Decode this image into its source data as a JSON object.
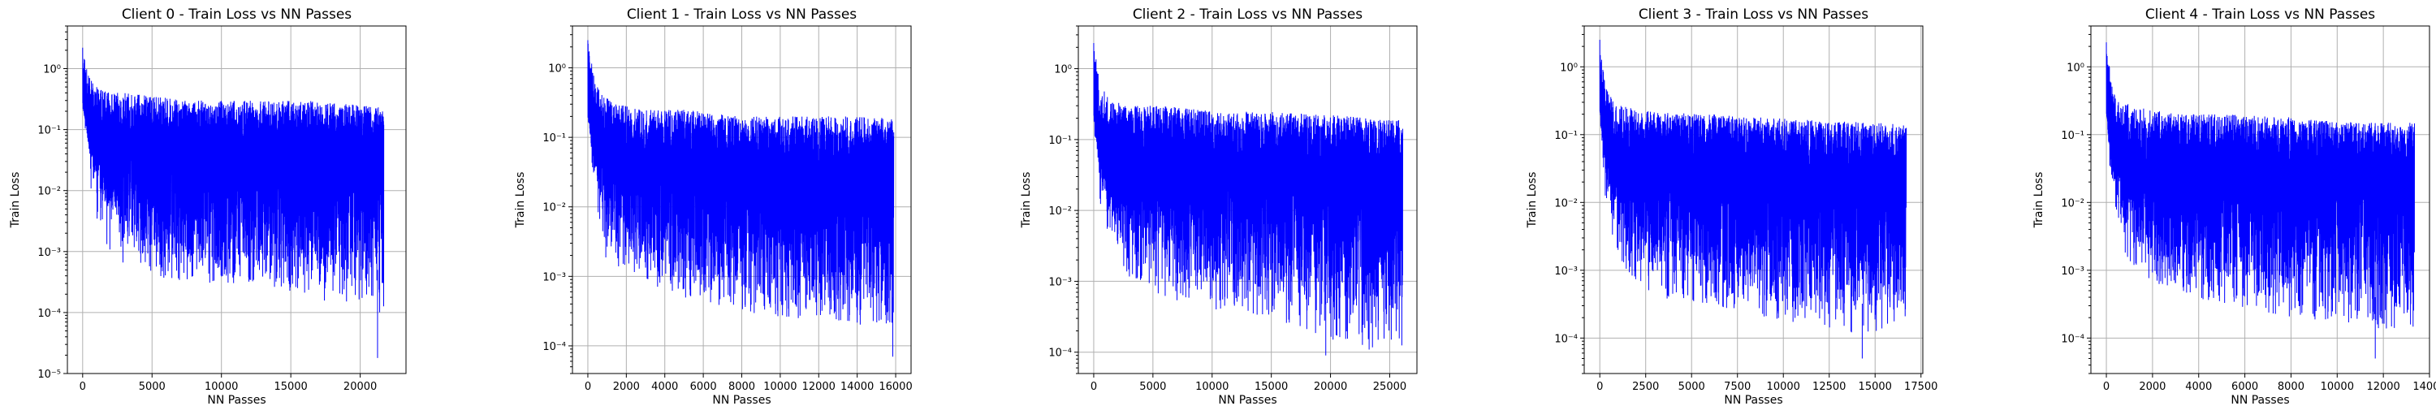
{
  "chart_data": [
    {
      "type": "line",
      "title": "Client 0 - Train Loss vs NN Passes",
      "xlabel": "NN Passes",
      "ylabel": "Train Loss",
      "yscale": "log",
      "xlim": [
        -1100,
        23300
      ],
      "ylim": [
        1e-05,
        5
      ],
      "grid": true,
      "color": "#0000ff",
      "x_ticks": [
        0,
        5000,
        10000,
        15000,
        20000
      ],
      "x_tick_labels": [
        "0",
        "5000",
        "10000",
        "15000",
        "20000"
      ],
      "y_ticks": [
        1e-05,
        0.0001,
        0.001,
        0.01,
        0.1,
        1
      ],
      "y_tick_labels": [
        "10⁻⁵",
        "10⁻⁴",
        "10⁻³",
        "10⁻²",
        "10⁻¹",
        "10⁰"
      ],
      "x_max": 21700,
      "envelope": {
        "x": [
          0,
          500,
          1000,
          2000,
          3000,
          5000,
          8000,
          12000,
          16000,
          20000,
          21700
        ],
        "upper": [
          2.2,
          0.7,
          0.5,
          0.4,
          0.4,
          0.35,
          0.3,
          0.3,
          0.3,
          0.25,
          0.25
        ],
        "lower": [
          0.3,
          0.04,
          0.01,
          0.005,
          0.002,
          0.001,
          0.0008,
          0.0006,
          0.0005,
          0.0005,
          0.0005
        ],
        "min": [
          0.3,
          0.01,
          0.003,
          0.001,
          0.0005,
          0.0004,
          0.0003,
          0.0003,
          0.0002,
          0.0001,
          0.0001
        ]
      },
      "min_point": {
        "x": 21250,
        "y": 1.8e-05
      }
    },
    {
      "type": "line",
      "title": "Client 1 - Train Loss vs NN Passes",
      "xlabel": "NN Passes",
      "ylabel": "Train Loss",
      "yscale": "log",
      "xlim": [
        -800,
        16800
      ],
      "ylim": [
        4e-05,
        4
      ],
      "grid": true,
      "color": "#0000ff",
      "x_ticks": [
        0,
        2000,
        4000,
        6000,
        8000,
        10000,
        12000,
        14000,
        16000
      ],
      "x_tick_labels": [
        "0",
        "2000",
        "4000",
        "6000",
        "8000",
        "10000",
        "12000",
        "14000",
        "16000"
      ],
      "y_ticks": [
        0.0001,
        0.001,
        0.01,
        0.1,
        1
      ],
      "y_tick_labels": [
        "10⁻⁴",
        "10⁻³",
        "10⁻²",
        "10⁻¹",
        "10⁰"
      ],
      "x_max": 15900,
      "envelope": {
        "x": [
          0,
          300,
          800,
          1500,
          3000,
          5000,
          8000,
          11000,
          14000,
          15900
        ],
        "upper": [
          2.5,
          0.8,
          0.4,
          0.3,
          0.25,
          0.25,
          0.2,
          0.2,
          0.2,
          0.2
        ],
        "lower": [
          0.2,
          0.03,
          0.008,
          0.003,
          0.002,
          0.001,
          0.0008,
          0.0006,
          0.0005,
          0.0005
        ],
        "min": [
          0.2,
          0.01,
          0.002,
          0.001,
          0.0008,
          0.0005,
          0.0003,
          0.00025,
          0.0002,
          0.0002
        ]
      },
      "min_point": {
        "x": 15850,
        "y": 7e-05
      }
    },
    {
      "type": "line",
      "title": "Client 2 - Train Loss vs NN Passes",
      "xlabel": "NN Passes",
      "ylabel": "Train Loss",
      "yscale": "log",
      "xlim": [
        -1300,
        27300
      ],
      "ylim": [
        5e-05,
        4
      ],
      "grid": true,
      "color": "#0000ff",
      "x_ticks": [
        0,
        5000,
        10000,
        15000,
        20000,
        25000
      ],
      "x_tick_labels": [
        "0",
        "5000",
        "10000",
        "15000",
        "20000",
        "25000"
      ],
      "y_ticks": [
        0.0001,
        0.001,
        0.01,
        0.1,
        1
      ],
      "y_tick_labels": [
        "10⁻⁴",
        "10⁻³",
        "10⁻²",
        "10⁻¹",
        "10⁰"
      ],
      "x_max": 26100,
      "envelope": {
        "x": [
          0,
          500,
          1500,
          3000,
          6000,
          10000,
          15000,
          20000,
          24000,
          26100
        ],
        "upper": [
          2.3,
          0.6,
          0.35,
          0.3,
          0.3,
          0.25,
          0.25,
          0.22,
          0.2,
          0.2
        ],
        "lower": [
          0.2,
          0.03,
          0.008,
          0.003,
          0.002,
          0.001,
          0.0007,
          0.0005,
          0.0004,
          0.0004
        ],
        "min": [
          0.2,
          0.01,
          0.003,
          0.001,
          0.0006,
          0.0004,
          0.0003,
          0.00015,
          0.0001,
          0.0001
        ]
      },
      "min_point": {
        "x": 19600,
        "y": 9e-05
      }
    },
    {
      "type": "line",
      "title": "Client 3 - Train Loss vs NN Passes",
      "xlabel": "NN Passes",
      "ylabel": "Train Loss",
      "yscale": "log",
      "xlim": [
        -850,
        17600
      ],
      "ylim": [
        3e-05,
        4
      ],
      "grid": true,
      "color": "#0000ff",
      "x_ticks": [
        0,
        2500,
        5000,
        7500,
        10000,
        12500,
        15000,
        17500
      ],
      "x_tick_labels": [
        "0",
        "2500",
        "5000",
        "7500",
        "10000",
        "12500",
        "15000",
        "17500"
      ],
      "y_ticks": [
        0.0001,
        0.001,
        0.01,
        0.1,
        1
      ],
      "y_tick_labels": [
        "10⁻⁴",
        "10⁻³",
        "10⁻²",
        "10⁻¹",
        "10⁰"
      ],
      "x_max": 16700,
      "envelope": {
        "x": [
          0,
          300,
          800,
          1500,
          3000,
          6000,
          9000,
          12000,
          15000,
          16700
        ],
        "upper": [
          2.5,
          0.5,
          0.3,
          0.25,
          0.22,
          0.2,
          0.18,
          0.16,
          0.15,
          0.15
        ],
        "lower": [
          0.2,
          0.02,
          0.006,
          0.002,
          0.001,
          0.0007,
          0.0005,
          0.0004,
          0.0003,
          0.0003
        ],
        "min": [
          0.2,
          0.008,
          0.002,
          0.0008,
          0.0004,
          0.0003,
          0.0002,
          0.00015,
          0.0001,
          0.0001
        ]
      },
      "min_point": {
        "x": 14300,
        "y": 5e-05
      }
    },
    {
      "type": "line",
      "title": "Client 4 - Train Loss vs NN Passes",
      "xlabel": "NN Passes",
      "ylabel": "Train Loss",
      "yscale": "log",
      "xlim": [
        -670,
        14000
      ],
      "ylim": [
        3e-05,
        4
      ],
      "grid": true,
      "color": "#0000ff",
      "x_ticks": [
        0,
        2000,
        4000,
        6000,
        8000,
        10000,
        12000,
        14000
      ],
      "x_tick_labels": [
        "0",
        "2000",
        "4000",
        "6000",
        "8000",
        "10000",
        "12000",
        "14000"
      ],
      "y_ticks": [
        0.0001,
        0.001,
        0.01,
        0.1,
        1
      ],
      "y_tick_labels": [
        "10⁻⁴",
        "10⁻³",
        "10⁻²",
        "10⁻¹",
        "10⁰"
      ],
      "x_max": 13350,
      "envelope": {
        "x": [
          0,
          250,
          700,
          1500,
          3000,
          5000,
          8000,
          11000,
          13350
        ],
        "upper": [
          2.3,
          0.5,
          0.3,
          0.25,
          0.2,
          0.2,
          0.18,
          0.15,
          0.15
        ],
        "lower": [
          0.2,
          0.02,
          0.006,
          0.002,
          0.001,
          0.0007,
          0.0005,
          0.0004,
          0.0004
        ],
        "min": [
          0.2,
          0.008,
          0.002,
          0.0008,
          0.0005,
          0.0003,
          0.0002,
          0.00015,
          0.00012
        ]
      },
      "min_point": {
        "x": 11650,
        "y": 5e-05
      }
    }
  ]
}
